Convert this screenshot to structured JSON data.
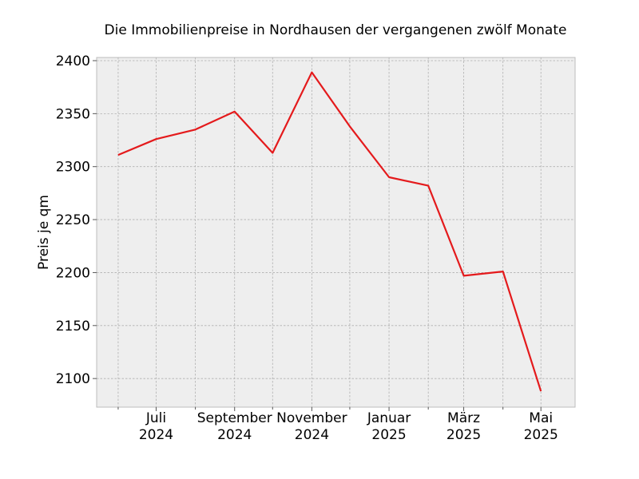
{
  "chart_data": {
    "type": "line",
    "title": "Die Immobilienpreise in Nordhausen der vergangenen zwölf Monate",
    "xlabel": "",
    "ylabel": "Preis je qm",
    "x": [
      "2024-06",
      "2024-07",
      "2024-08",
      "2024-09",
      "2024-10",
      "2024-11",
      "2024-12",
      "2025-01",
      "2025-02",
      "2025-03",
      "2025-04",
      "2025-05"
    ],
    "xlim": [
      "2024-05-15",
      "2025-05-28"
    ],
    "x_major_ticks": [
      {
        "x": "2024-07",
        "label1": "Juli",
        "label2": "2024"
      },
      {
        "x": "2024-09",
        "label1": "September",
        "label2": "2024"
      },
      {
        "x": "2024-11",
        "label1": "November",
        "label2": "2024"
      },
      {
        "x": "2025-01",
        "label1": "Januar",
        "label2": "2025"
      },
      {
        "x": "2025-03",
        "label1": "März",
        "label2": "2025"
      },
      {
        "x": "2025-05",
        "label1": "Mai",
        "label2": "2025"
      }
    ],
    "x_minor_ticks": [
      "2024-06",
      "2024-08",
      "2024-10",
      "2024-12",
      "2025-02",
      "2025-04"
    ],
    "series": [
      {
        "values": [
          2311,
          2326,
          2335,
          2352,
          2313,
          2389,
          2338,
          2290,
          2282,
          2197,
          2201,
          2088
        ],
        "color": "#e41a1c"
      }
    ],
    "ylim": [
      2073,
      2403
    ],
    "y_ticks": [
      2100,
      2150,
      2200,
      2250,
      2300,
      2350,
      2400
    ],
    "grid": true
  }
}
